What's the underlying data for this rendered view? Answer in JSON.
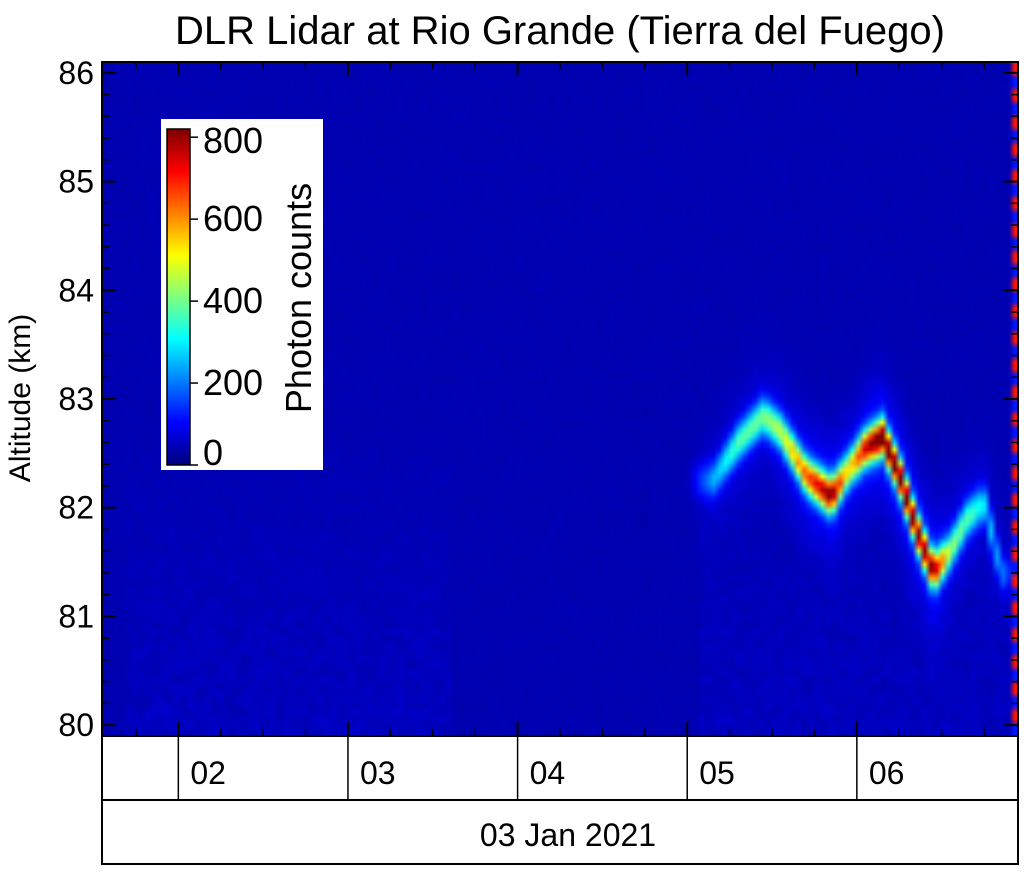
{
  "chart_data": {
    "type": "heatmap",
    "title": "DLR Lidar at Rio Grande (Tierra del Fuego)",
    "ylabel": "Altitude (km)",
    "xlabel": "",
    "y_ticks": [
      80,
      81,
      82,
      83,
      84,
      85,
      86
    ],
    "ylim": [
      79.9,
      86.1
    ],
    "x_hour_range": [
      1.55,
      6.95
    ],
    "x_ticks": [
      "02",
      "03",
      "04",
      "05",
      "06"
    ],
    "date_label": "03 Jan 2021",
    "colorbar": {
      "label": "Photon counts",
      "ticks": [
        0,
        200,
        400,
        600,
        800
      ],
      "range": [
        0,
        820
      ],
      "placement": "top-left",
      "colormap": "jet"
    },
    "background_counts": 40,
    "layer_trace": [
      {
        "hour": 5.15,
        "altitude_km": 82.25,
        "peak_counts": 180
      },
      {
        "hour": 5.3,
        "altitude_km": 82.6,
        "peak_counts": 300
      },
      {
        "hour": 5.45,
        "altitude_km": 82.85,
        "peak_counts": 330
      },
      {
        "hour": 5.55,
        "altitude_km": 82.7,
        "peak_counts": 380
      },
      {
        "hour": 5.7,
        "altitude_km": 82.3,
        "peak_counts": 550
      },
      {
        "hour": 5.85,
        "altitude_km": 82.1,
        "peak_counts": 720
      },
      {
        "hour": 5.95,
        "altitude_km": 82.35,
        "peak_counts": 420
      },
      {
        "hour": 6.05,
        "altitude_km": 82.55,
        "peak_counts": 650
      },
      {
        "hour": 6.15,
        "altitude_km": 82.65,
        "peak_counts": 780
      },
      {
        "hour": 6.25,
        "altitude_km": 82.3,
        "peak_counts": 760
      },
      {
        "hour": 6.35,
        "altitude_km": 81.8,
        "peak_counts": 720
      },
      {
        "hour": 6.45,
        "altitude_km": 81.4,
        "peak_counts": 700
      },
      {
        "hour": 6.55,
        "altitude_km": 81.6,
        "peak_counts": 350
      },
      {
        "hour": 6.65,
        "altitude_km": 81.9,
        "peak_counts": 300
      },
      {
        "hour": 6.75,
        "altitude_km": 82.05,
        "peak_counts": 230
      },
      {
        "hour": 6.85,
        "altitude_km": 81.4,
        "peak_counts": 150
      }
    ]
  }
}
